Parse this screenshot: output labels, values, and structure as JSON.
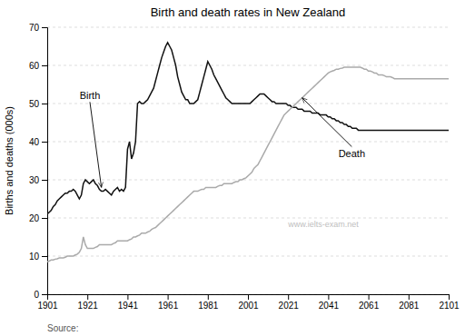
{
  "chart_data": {
    "type": "line",
    "title": "Birth and death rates in New Zealand",
    "ylabel": "Births and deaths (000s)",
    "xlim": [
      1901,
      2101
    ],
    "ylim": [
      0,
      70
    ],
    "xticks": [
      1901,
      1921,
      1941,
      1961,
      1981,
      2001,
      2021,
      2041,
      2061,
      2081,
      2101
    ],
    "yticks": [
      0,
      10,
      20,
      30,
      40,
      50,
      60,
      70
    ],
    "grid": true,
    "watermark": "www.ielts-exam.net",
    "source": "Source:",
    "annotations": [
      {
        "text": "Birth",
        "x": 1928,
        "y": 28
      },
      {
        "text": "Death",
        "x": 2028,
        "y": 51.5
      }
    ],
    "x": [
      1901,
      1902,
      1903,
      1904,
      1905,
      1906,
      1907,
      1908,
      1909,
      1910,
      1911,
      1912,
      1913,
      1914,
      1915,
      1916,
      1917,
      1918,
      1919,
      1920,
      1921,
      1922,
      1923,
      1924,
      1925,
      1926,
      1927,
      1928,
      1929,
      1930,
      1931,
      1932,
      1933,
      1934,
      1935,
      1936,
      1937,
      1938,
      1939,
      1940,
      1941,
      1942,
      1943,
      1944,
      1945,
      1946,
      1947,
      1948,
      1949,
      1950,
      1951,
      1952,
      1953,
      1954,
      1955,
      1956,
      1957,
      1958,
      1959,
      1960,
      1961,
      1962,
      1963,
      1964,
      1965,
      1966,
      1967,
      1968,
      1969,
      1970,
      1971,
      1972,
      1973,
      1974,
      1975,
      1976,
      1977,
      1978,
      1979,
      1980,
      1981,
      1982,
      1983,
      1984,
      1985,
      1986,
      1987,
      1988,
      1989,
      1990,
      1991,
      1992,
      1993,
      1994,
      1995,
      1996,
      1997,
      1998,
      1999,
      2000,
      2001,
      2002,
      2003,
      2004,
      2005,
      2006,
      2007,
      2008,
      2009,
      2010,
      2011,
      2012,
      2013,
      2014,
      2015,
      2016,
      2017,
      2018,
      2019,
      2020,
      2021,
      2022,
      2023,
      2024,
      2025,
      2026,
      2027,
      2028,
      2029,
      2030,
      2031,
      2032,
      2033,
      2034,
      2035,
      2036,
      2037,
      2038,
      2039,
      2040,
      2041,
      2042,
      2043,
      2044,
      2045,
      2046,
      2047,
      2048,
      2049,
      2050,
      2051,
      2052,
      2053,
      2054,
      2055,
      2056,
      2057,
      2058,
      2059,
      2060,
      2061,
      2062,
      2063,
      2064,
      2065,
      2066,
      2067,
      2068,
      2069,
      2070,
      2071,
      2072,
      2073,
      2074,
      2075,
      2076,
      2077,
      2078,
      2079,
      2080,
      2081,
      2082,
      2083,
      2084,
      2085,
      2086,
      2087,
      2088,
      2089,
      2090,
      2091,
      2092,
      2093,
      2094,
      2095,
      2096,
      2097,
      2098,
      2099,
      2100,
      2101
    ],
    "series": [
      {
        "color": "#111111",
        "values": [
          21.0,
          21.5,
          22.0,
          23.0,
          23.5,
          24.5,
          25.0,
          25.5,
          26.0,
          26.5,
          26.5,
          27.0,
          27.0,
          27.5,
          27.0,
          26.0,
          25.0,
          26.0,
          29.0,
          30.0,
          29.5,
          29.0,
          29.5,
          30.0,
          29.0,
          28.5,
          27.5,
          27.0,
          27.0,
          27.5,
          27.0,
          26.5,
          26.0,
          27.0,
          27.5,
          28.0,
          27.0,
          27.5,
          27.0,
          28.0,
          38.0,
          40.0,
          35.5,
          37.0,
          40.0,
          50.0,
          50.5,
          50.0,
          50.0,
          50.5,
          51.0,
          52.0,
          53.0,
          54.0,
          56.0,
          58.0,
          60.0,
          62.0,
          63.5,
          65.0,
          66.0,
          65.0,
          64.0,
          62.0,
          60.0,
          57.0,
          55.0,
          53.0,
          52.0,
          51.0,
          51.0,
          50.0,
          50.0,
          50.0,
          50.5,
          51.0,
          53.0,
          55.0,
          57.0,
          59.0,
          61.0,
          60.0,
          59.0,
          57.5,
          56.5,
          55.5,
          54.5,
          53.5,
          52.5,
          51.5,
          51.0,
          50.5,
          50.0,
          50.0,
          50.0,
          50.0,
          50.0,
          50.0,
          50.0,
          50.0,
          50.0,
          50.0,
          50.5,
          51.0,
          51.5,
          52.0,
          52.5,
          52.5,
          52.5,
          52.0,
          51.5,
          51.0,
          50.5,
          50.5,
          50.0,
          50.0,
          50.0,
          50.0,
          50.0,
          50.0,
          49.5,
          49.5,
          49.0,
          49.0,
          49.0,
          48.5,
          48.5,
          48.5,
          48.0,
          48.0,
          48.0,
          48.0,
          47.5,
          47.5,
          47.5,
          47.5,
          47.0,
          47.0,
          47.0,
          47.0,
          46.5,
          46.5,
          46.0,
          46.0,
          45.5,
          45.5,
          45.0,
          45.0,
          44.5,
          44.5,
          44.0,
          44.0,
          43.5,
          43.5,
          43.5,
          43.0,
          43.0,
          43.0,
          43.0,
          43.0,
          43.0,
          43.0,
          43.0,
          43.0,
          43.0,
          43.0,
          43.0,
          43.0,
          43.0,
          43.0,
          43.0,
          43.0,
          43.0,
          43.0,
          43.0,
          43.0,
          43.0,
          43.0,
          43.0,
          43.0,
          43.0,
          43.0,
          43.0,
          43.0,
          43.0,
          43.0,
          43.0,
          43.0,
          43.0,
          43.0,
          43.0,
          43.0,
          43.0,
          43.0,
          43.0,
          43.0,
          43.0,
          43.0,
          43.0,
          43.0,
          43.0
        ]
      },
      {
        "color": "#aaaaaa",
        "values": [
          8.5,
          8.7,
          9.0,
          9.0,
          9.2,
          9.3,
          9.5,
          9.5,
          9.5,
          9.7,
          10.0,
          10.0,
          10.0,
          10.0,
          10.3,
          10.5,
          11.0,
          12.0,
          15.0,
          13.0,
          12.0,
          12.0,
          12.0,
          12.0,
          12.3,
          12.5,
          13.0,
          13.0,
          13.0,
          13.0,
          13.0,
          13.0,
          13.0,
          13.3,
          13.5,
          14.0,
          14.0,
          14.0,
          14.0,
          14.0,
          14.0,
          14.3,
          14.5,
          15.0,
          15.0,
          15.3,
          15.5,
          16.0,
          16.0,
          16.0,
          16.3,
          16.5,
          17.0,
          17.3,
          17.5,
          18.0,
          18.5,
          19.0,
          19.5,
          20.0,
          20.5,
          21.0,
          21.5,
          22.0,
          22.5,
          23.0,
          23.5,
          24.0,
          24.5,
          25.0,
          25.5,
          26.0,
          26.5,
          27.0,
          27.0,
          27.0,
          27.3,
          27.5,
          27.5,
          28.0,
          28.0,
          28.0,
          28.0,
          28.0,
          28.0,
          28.3,
          28.5,
          28.5,
          29.0,
          29.0,
          29.0,
          29.0,
          29.0,
          29.3,
          29.5,
          29.5,
          30.0,
          30.0,
          30.3,
          30.5,
          31.0,
          31.5,
          32.0,
          33.0,
          33.5,
          34.0,
          35.0,
          36.0,
          37.0,
          38.0,
          39.0,
          40.0,
          41.0,
          42.0,
          43.0,
          44.0,
          45.0,
          46.0,
          47.0,
          47.5,
          48.0,
          48.5,
          49.0,
          49.5,
          50.0,
          50.5,
          51.0,
          51.5,
          52.0,
          52.5,
          53.0,
          53.5,
          54.0,
          54.5,
          55.0,
          55.5,
          56.0,
          56.5,
          57.0,
          57.5,
          58.0,
          58.3,
          58.5,
          58.7,
          59.0,
          59.0,
          59.2,
          59.3,
          59.5,
          59.5,
          59.5,
          59.5,
          59.5,
          59.5,
          59.5,
          59.5,
          59.5,
          59.3,
          59.0,
          59.0,
          58.5,
          58.5,
          58.3,
          58.0,
          58.0,
          57.5,
          57.5,
          57.5,
          57.3,
          57.0,
          57.0,
          57.0,
          56.8,
          56.5,
          56.5,
          56.5,
          56.5,
          56.5,
          56.5,
          56.5,
          56.5,
          56.5,
          56.5,
          56.5,
          56.5,
          56.5,
          56.5,
          56.5,
          56.5,
          56.5,
          56.5,
          56.5,
          56.5,
          56.5,
          56.5,
          56.5,
          56.5,
          56.5,
          56.5,
          56.5,
          56.5
        ]
      }
    ]
  }
}
